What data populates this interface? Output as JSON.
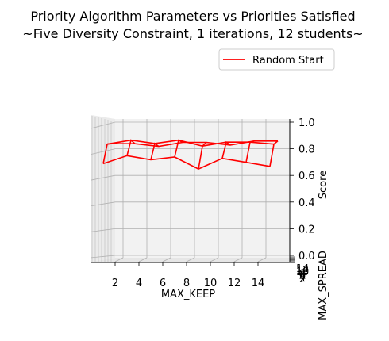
{
  "chart_data": {
    "type": "surface",
    "title": "Priority Algorithm Parameters vs Priorities Satisfied",
    "subtitle": "~Five Diversity Constraint, 1 iterations, 12 students~",
    "xlabel": "MAX_KEEP",
    "ylabel": "MAX_SPREAD",
    "zlabel": "Score",
    "x_ticks": [
      "2",
      "4",
      "6",
      "8",
      "10",
      "12",
      "14"
    ],
    "y_ticks": [
      "2",
      "4",
      "6",
      "8",
      "10",
      "12",
      "14"
    ],
    "z_ticks": [
      "0.0",
      "0.2",
      "0.4",
      "0.6",
      "0.8",
      "1.0"
    ],
    "zlim": [
      0,
      1
    ],
    "legend": {
      "position": "top-right",
      "entries": [
        {
          "label": "Random Start",
          "color": "#ff0000"
        }
      ]
    },
    "series": [
      {
        "name": "Random Start",
        "color": "#ff0000",
        "x": [
          1,
          3,
          5,
          7,
          9,
          11,
          13,
          15
        ],
        "front_row": [
          0.7,
          0.76,
          0.73,
          0.75,
          0.66,
          0.74,
          0.71,
          0.68
        ],
        "back_row": [
          0.85,
          0.85,
          0.83,
          0.86,
          0.86,
          0.84,
          0.87,
          0.87
        ]
      }
    ]
  }
}
